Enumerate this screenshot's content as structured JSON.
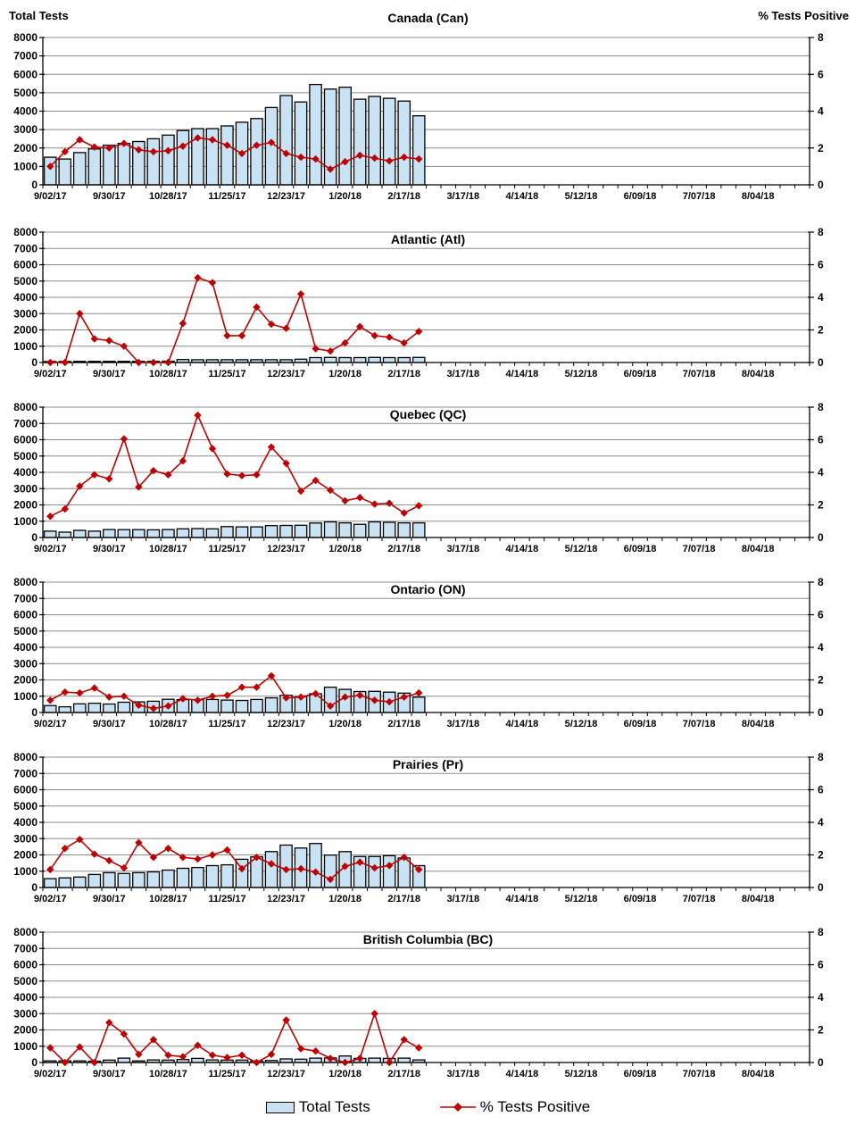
{
  "page": {
    "top_left_axis_label": "Total Tests",
    "top_right_axis_label": "% Tests Positive"
  },
  "legend": {
    "bar_label": "Total Tests",
    "line_label": "% Tests Positive"
  },
  "colors": {
    "bar_fill": "#C9E3F5",
    "bar_border": "#000000",
    "line_color": "#C00000",
    "gridline_color": "#8C8C8C",
    "axis_color": "#000000"
  },
  "axes": {
    "y_left": {
      "label": "Total Tests",
      "min": 0,
      "max": 8000,
      "tick_step": 1000,
      "tick_labels": [
        "0",
        "1000",
        "2000",
        "3000",
        "4000",
        "5000",
        "6000",
        "7000",
        "8000"
      ]
    },
    "y_right": {
      "label": "% Tests Positive",
      "min": 0,
      "max": 8,
      "tick_values": [
        0,
        2,
        4,
        6,
        8
      ],
      "tick_labels": [
        "0",
        "2",
        "4",
        "6",
        "8"
      ]
    },
    "x": {
      "weeks_total": 52,
      "label_every_n_weeks": 4,
      "tick_labels": [
        "9/02/17",
        "9/30/17",
        "10/28/17",
        "11/25/17",
        "12/23/17",
        "1/20/18",
        "2/17/18",
        "3/17/18",
        "4/14/18",
        "5/12/18",
        "6/09/18",
        "7/07/18",
        "8/04/18"
      ]
    }
  },
  "chart_data": [
    {
      "type": "bar",
      "title": "Canada (Can)",
      "grid": true,
      "legend_position": "bottom",
      "series": [
        {
          "name": "Total Tests",
          "type": "bar",
          "axis": "left",
          "values": [
            1500,
            1400,
            1750,
            1950,
            2150,
            2250,
            2350,
            2500,
            2700,
            2950,
            3050,
            3050,
            3200,
            3400,
            3600,
            4200,
            4850,
            4500,
            5450,
            5200,
            5300,
            4650,
            4800,
            4700,
            4550,
            3750
          ]
        },
        {
          "name": "% Tests Positive",
          "type": "line",
          "axis": "right",
          "values": [
            1.0,
            1.8,
            2.45,
            2.05,
            2.0,
            2.25,
            1.9,
            1.8,
            1.85,
            2.1,
            2.55,
            2.45,
            2.15,
            1.7,
            2.15,
            2.3,
            1.7,
            1.5,
            1.4,
            0.85,
            1.25,
            1.6,
            1.45,
            1.3,
            1.5,
            1.4
          ]
        }
      ]
    },
    {
      "type": "bar",
      "title": "Atlantic (Atl)",
      "grid": true,
      "series": [
        {
          "name": "Total Tests",
          "type": "bar",
          "axis": "left",
          "values": [
            60,
            60,
            70,
            70,
            70,
            70,
            70,
            70,
            80,
            180,
            170,
            170,
            170,
            170,
            170,
            170,
            170,
            200,
            300,
            310,
            300,
            300,
            310,
            300,
            300,
            310
          ]
        },
        {
          "name": "% Tests Positive",
          "type": "line",
          "axis": "right",
          "values": [
            0,
            0,
            3.0,
            1.45,
            1.35,
            1.0,
            0,
            0,
            0,
            2.4,
            5.2,
            4.9,
            1.65,
            1.65,
            3.4,
            2.35,
            2.1,
            4.2,
            0.85,
            0.7,
            1.2,
            2.2,
            1.65,
            1.55,
            1.2,
            1.9
          ]
        }
      ]
    },
    {
      "type": "bar",
      "title": "Quebec (QC)",
      "grid": true,
      "series": [
        {
          "name": "Total Tests",
          "type": "bar",
          "axis": "left",
          "values": [
            390,
            330,
            440,
            390,
            490,
            480,
            480,
            470,
            490,
            530,
            550,
            530,
            670,
            650,
            650,
            730,
            740,
            750,
            890,
            960,
            900,
            810,
            960,
            930,
            900,
            900
          ]
        },
        {
          "name": "% Tests Positive",
          "type": "line",
          "axis": "right",
          "values": [
            1.3,
            1.75,
            3.15,
            3.85,
            3.6,
            6.05,
            3.1,
            4.1,
            3.85,
            4.7,
            7.5,
            5.45,
            3.9,
            3.8,
            3.85,
            5.55,
            4.55,
            2.85,
            3.5,
            2.9,
            2.25,
            2.45,
            2.05,
            2.1,
            1.5,
            1.95
          ]
        }
      ]
    },
    {
      "type": "bar",
      "title": "Ontario (ON)",
      "grid": true,
      "series": [
        {
          "name": "Total Tests",
          "type": "bar",
          "axis": "left",
          "values": [
            420,
            350,
            530,
            570,
            520,
            630,
            650,
            690,
            810,
            790,
            790,
            800,
            760,
            740,
            800,
            900,
            1050,
            970,
            1150,
            1550,
            1420,
            1290,
            1300,
            1250,
            1190,
            940
          ]
        },
        {
          "name": "% Tests Positive",
          "type": "line",
          "axis": "right",
          "values": [
            0.75,
            1.25,
            1.2,
            1.5,
            0.95,
            1.0,
            0.45,
            0.25,
            0.4,
            0.85,
            0.75,
            1.0,
            1.05,
            1.55,
            1.55,
            2.25,
            0.9,
            0.95,
            1.15,
            0.4,
            0.95,
            1.05,
            0.75,
            0.65,
            0.95,
            1.2
          ]
        }
      ]
    },
    {
      "type": "bar",
      "title": "Prairies (Pr)",
      "grid": true,
      "series": [
        {
          "name": "Total Tests",
          "type": "bar",
          "axis": "left",
          "values": [
            540,
            590,
            640,
            800,
            910,
            860,
            910,
            960,
            1070,
            1180,
            1230,
            1340,
            1390,
            1730,
            1880,
            2200,
            2600,
            2420,
            2700,
            1990,
            2200,
            1900,
            1900,
            1950,
            1810,
            1340
          ]
        },
        {
          "name": "% Tests Positive",
          "type": "line",
          "axis": "right",
          "values": [
            1.1,
            2.4,
            2.95,
            2.05,
            1.65,
            1.2,
            2.75,
            1.85,
            2.4,
            1.85,
            1.75,
            2.0,
            2.3,
            1.15,
            1.85,
            1.45,
            1.1,
            1.15,
            0.95,
            0.5,
            1.3,
            1.55,
            1.2,
            1.35,
            1.85,
            1.1
          ]
        }
      ]
    },
    {
      "type": "bar",
      "title": "British Columbia (BC)",
      "grid": true,
      "series": [
        {
          "name": "Total Tests",
          "type": "bar",
          "axis": "left",
          "values": [
            100,
            100,
            100,
            80,
            150,
            270,
            100,
            160,
            150,
            180,
            250,
            160,
            150,
            150,
            100,
            120,
            220,
            200,
            270,
            280,
            400,
            250,
            270,
            250,
            270,
            160
          ]
        },
        {
          "name": "% Tests Positive",
          "type": "line",
          "axis": "right",
          "values": [
            0.9,
            0,
            0.95,
            0,
            2.45,
            1.75,
            0.5,
            1.4,
            0.45,
            0.35,
            1.05,
            0.45,
            0.3,
            0.45,
            0,
            0.5,
            2.6,
            0.85,
            0.7,
            0.25,
            0,
            0.25,
            3.0,
            0,
            1.4,
            0.9
          ]
        }
      ]
    }
  ]
}
